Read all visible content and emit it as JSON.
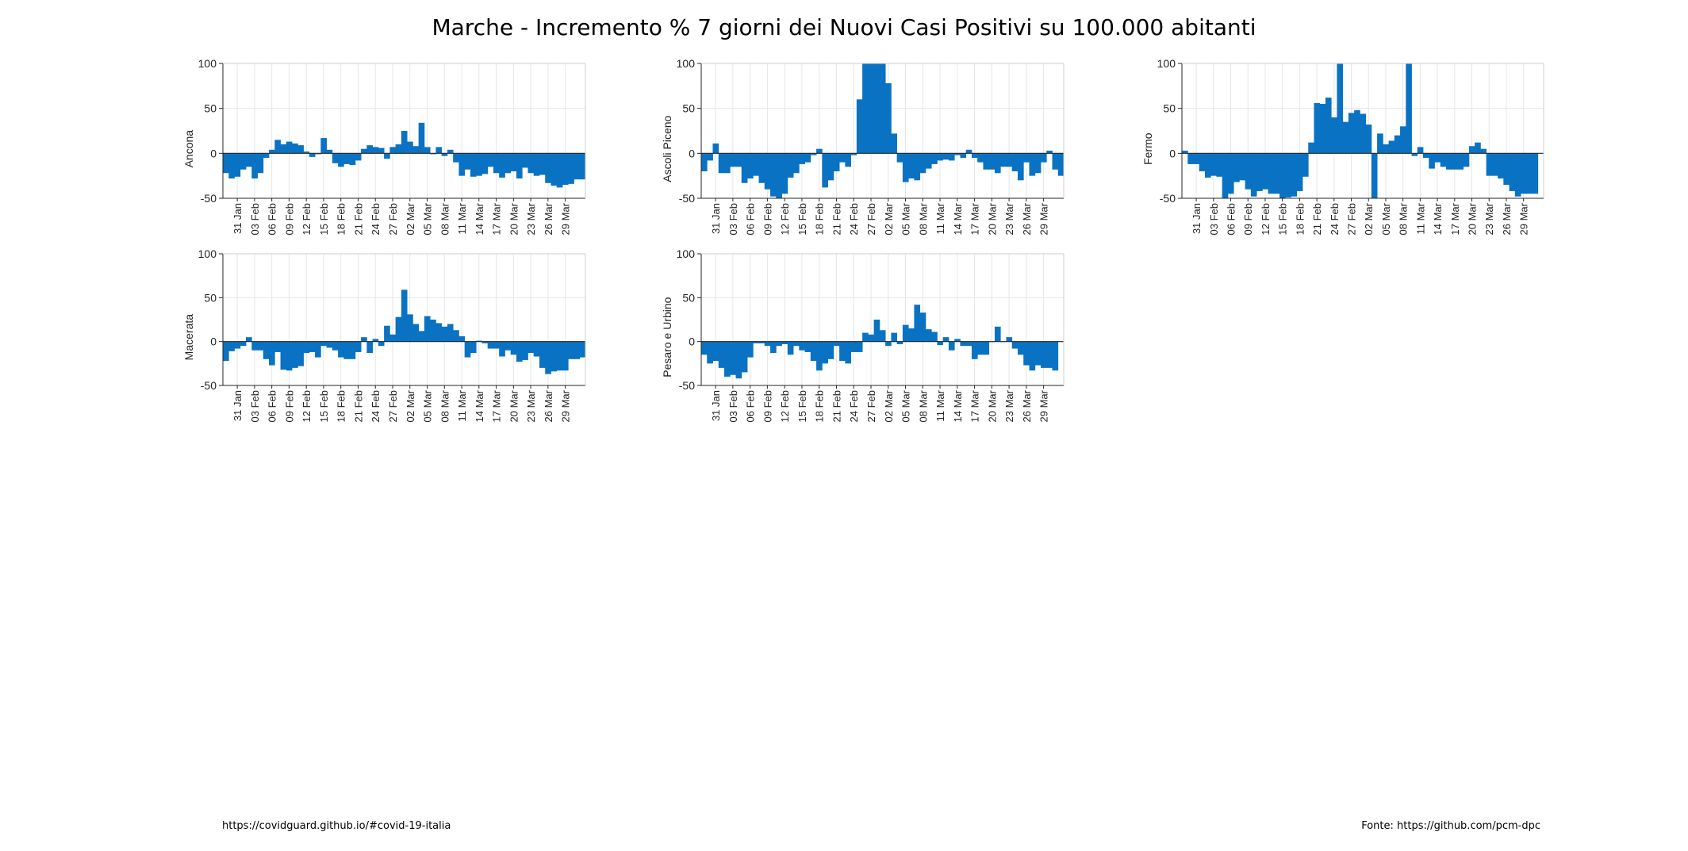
{
  "title": "Marche - Incremento % 7 giorni dei Nuovi Casi Positivi su 100.000 abitanti",
  "footer": {
    "left": "https://covidguard.github.io/#covid-19-italia",
    "right": "Fonte: https://github.com/pcm-dpc"
  },
  "colors": {
    "bar": "#0a72c2",
    "grid": "#e6e6e6",
    "axis": "#262626"
  },
  "chart_data": [
    {
      "type": "bar",
      "ylabel": "Ancona",
      "ylim": [
        -50,
        100
      ],
      "yticks": [
        -50,
        0,
        50,
        100
      ],
      "grid": true,
      "xticklabels": [
        "31 Jan",
        "03 Feb",
        "06 Feb",
        "09 Feb",
        "12 Feb",
        "15 Feb",
        "18 Feb",
        "21 Feb",
        "24 Feb",
        "27 Feb",
        "02 Mar",
        "05 Mar",
        "08 Mar",
        "11 Mar",
        "14 Mar",
        "17 Mar",
        "20 Mar",
        "23 Mar",
        "26 Mar",
        "29 Mar"
      ],
      "x_start": "29 Jan",
      "values": [
        -22,
        -28,
        -26,
        -18,
        -15,
        -28,
        -22,
        -5,
        4,
        15,
        10,
        13,
        11,
        9,
        2,
        -4,
        -1,
        17,
        4,
        -11,
        -15,
        -12,
        -13,
        -8,
        5,
        9,
        7,
        6,
        -6,
        7,
        10,
        25,
        13,
        8,
        34,
        7,
        -1,
        7,
        -3,
        4,
        -10,
        -25,
        -18,
        -26,
        -25,
        -23,
        -15,
        -22,
        -27,
        -22,
        -20,
        -28,
        -16,
        -22,
        -25,
        -24,
        -33,
        -36,
        -38,
        -35,
        -34,
        -29,
        -29,
        -32
      ]
    },
    {
      "type": "bar",
      "ylabel": "Ascoli Piceno",
      "ylim": [
        -50,
        100
      ],
      "yticks": [
        -50,
        0,
        50,
        100
      ],
      "grid": true,
      "xticklabels": [
        "31 Jan",
        "03 Feb",
        "06 Feb",
        "09 Feb",
        "12 Feb",
        "15 Feb",
        "18 Feb",
        "21 Feb",
        "24 Feb",
        "27 Feb",
        "02 Mar",
        "05 Mar",
        "08 Mar",
        "11 Mar",
        "14 Mar",
        "17 Mar",
        "20 Mar",
        "23 Mar",
        "26 Mar",
        "29 Mar"
      ],
      "x_start": "29 Jan",
      "values": [
        -20,
        -8,
        11,
        -22,
        -22,
        -15,
        -15,
        -33,
        -28,
        -25,
        -33,
        -40,
        -48,
        -50,
        -45,
        -27,
        -22,
        -12,
        -10,
        -2,
        5,
        -38,
        -30,
        -20,
        -10,
        -15,
        -2,
        60,
        100,
        100,
        100,
        100,
        78,
        22,
        -10,
        -32,
        -28,
        -30,
        -22,
        -17,
        -12,
        -8,
        -7,
        -8,
        -2,
        -5,
        4,
        -5,
        -10,
        -18,
        -18,
        -22,
        -15,
        -15,
        -20,
        -30,
        -10,
        -25,
        -22,
        -10,
        3,
        -18,
        -25
      ]
    },
    {
      "type": "bar",
      "ylabel": "Fermo",
      "ylim": [
        -50,
        100
      ],
      "yticks": [
        -50,
        0,
        50,
        100
      ],
      "grid": true,
      "xticklabels": [
        "31 Jan",
        "03 Feb",
        "06 Feb",
        "09 Feb",
        "12 Feb",
        "15 Feb",
        "18 Feb",
        "21 Feb",
        "24 Feb",
        "27 Feb",
        "02 Mar",
        "05 Mar",
        "08 Mar",
        "11 Mar",
        "14 Mar",
        "17 Mar",
        "20 Mar",
        "23 Mar",
        "26 Mar",
        "29 Mar"
      ],
      "x_start": "29 Jan",
      "values": [
        3,
        -12,
        -12,
        -20,
        -27,
        -25,
        -26,
        -50,
        -45,
        -32,
        -30,
        -40,
        -48,
        -42,
        -40,
        -45,
        -45,
        -50,
        -49,
        -48,
        -42,
        -26,
        12,
        56,
        55,
        62,
        40,
        100,
        35,
        45,
        48,
        44,
        32,
        -50,
        22,
        10,
        14,
        20,
        30,
        100,
        -3,
        7,
        -5,
        -17,
        -10,
        -15,
        -18,
        -18,
        -18,
        -15,
        8,
        12,
        5,
        -25,
        -25,
        -28,
        -35,
        -42,
        -48,
        -45,
        -45,
        -45
      ]
    },
    {
      "type": "bar",
      "ylabel": "Macerata",
      "ylim": [
        -50,
        100
      ],
      "yticks": [
        -50,
        0,
        50,
        100
      ],
      "grid": true,
      "xticklabels": [
        "31 Jan",
        "03 Feb",
        "06 Feb",
        "09 Feb",
        "12 Feb",
        "15 Feb",
        "18 Feb",
        "21 Feb",
        "24 Feb",
        "27 Feb",
        "02 Mar",
        "05 Mar",
        "08 Mar",
        "11 Mar",
        "14 Mar",
        "17 Mar",
        "20 Mar",
        "23 Mar",
        "26 Mar",
        "29 Mar"
      ],
      "x_start": "29 Jan",
      "values": [
        -22,
        -11,
        -8,
        -5,
        5,
        -10,
        -10,
        -20,
        -27,
        -12,
        -32,
        -33,
        -30,
        -28,
        -13,
        -12,
        -18,
        -5,
        -7,
        -10,
        -18,
        -20,
        -20,
        -12,
        5,
        -13,
        3,
        -5,
        18,
        8,
        28,
        59,
        31,
        20,
        12,
        29,
        25,
        21,
        17,
        20,
        13,
        6,
        -18,
        -13,
        1,
        -2,
        -8,
        -8,
        -17,
        -10,
        -15,
        -23,
        -21,
        -13,
        -17,
        -30,
        -37,
        -34,
        -33,
        -33,
        -20,
        -20,
        -18
      ]
    },
    {
      "type": "bar",
      "ylabel": "Pesaro e Urbino",
      "ylim": [
        -50,
        100
      ],
      "yticks": [
        -50,
        0,
        50,
        100
      ],
      "grid": true,
      "xticklabels": [
        "31 Jan",
        "03 Feb",
        "06 Feb",
        "09 Feb",
        "12 Feb",
        "15 Feb",
        "18 Feb",
        "21 Feb",
        "24 Feb",
        "27 Feb",
        "02 Mar",
        "05 Mar",
        "08 Mar",
        "11 Mar",
        "14 Mar",
        "17 Mar",
        "20 Mar",
        "23 Mar",
        "26 Mar",
        "29 Mar"
      ],
      "x_start": "29 Jan",
      "values": [
        -15,
        -25,
        -22,
        -30,
        -40,
        -38,
        -42,
        -35,
        -18,
        -2,
        -2,
        -5,
        -13,
        -5,
        -3,
        -15,
        -5,
        -10,
        -12,
        -22,
        -33,
        -25,
        -20,
        -5,
        -22,
        -25,
        -12,
        -12,
        10,
        8,
        25,
        13,
        -5,
        10,
        -3,
        19,
        15,
        42,
        33,
        14,
        11,
        -4,
        5,
        -10,
        3,
        -5,
        -5,
        -20,
        -15,
        -15,
        0,
        17,
        0,
        5,
        -8,
        -15,
        -27,
        -33,
        -27,
        -30,
        -30,
        -33
      ]
    }
  ]
}
